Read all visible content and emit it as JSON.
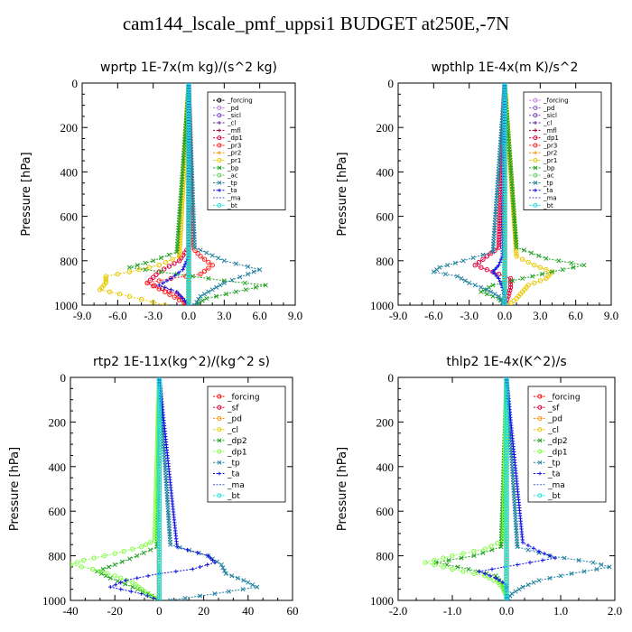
{
  "title": "cam144_lscale_pmf_uppsi1  BUDGET at250E,-7N",
  "chart_data": [
    {
      "type": "line",
      "title": "wprtp   1E-7x(m kg)/(s^2 kg)",
      "ylabel": "Pressure [hPa]",
      "xlim": [
        -9,
        9
      ],
      "ylim": [
        1000,
        0
      ],
      "xticks": [
        "-9.0",
        "-6.0",
        "-3.0",
        "0.0",
        "3.0",
        "6.0",
        "9.0"
      ],
      "yticks": [
        "0",
        "200",
        "400",
        "600",
        "800",
        "1000"
      ],
      "legend_position": "top-right",
      "series": [
        {
          "name": "_forcing",
          "color": "#000000",
          "marker": "o",
          "y": [
            0,
            1000
          ],
          "x": [
            0,
            0
          ]
        },
        {
          "name": "_pd",
          "color": "#c080e0",
          "marker": "o",
          "y": [
            0,
            1000
          ],
          "x": [
            0,
            0
          ]
        },
        {
          "name": "_sicl",
          "color": "#8040c0",
          "marker": "o",
          "y": [
            0,
            1000
          ],
          "x": [
            0,
            0
          ]
        },
        {
          "name": "_cl",
          "color": "#602090",
          "marker": "+",
          "y": [
            0,
            1000
          ],
          "x": [
            0,
            0
          ]
        },
        {
          "name": "_mfl",
          "color": "#a00030",
          "marker": "+",
          "y": [
            0,
            1000
          ],
          "x": [
            0,
            0
          ]
        },
        {
          "name": "_dp1",
          "color": "#e0003c",
          "marker": "o",
          "y": [
            0,
            740,
            800,
            850,
            900,
            950,
            1000
          ],
          "x": [
            0,
            0,
            -0.8,
            -2.5,
            -3.5,
            -1.0,
            0
          ]
        },
        {
          "name": "_pr3",
          "color": "#ff2020",
          "marker": "o",
          "y": [
            0,
            740,
            780,
            820,
            860,
            880,
            900,
            940,
            1000
          ],
          "x": [
            0,
            0.3,
            1.0,
            2.0,
            1.0,
            -1.5,
            -3.5,
            -2.0,
            0
          ]
        },
        {
          "name": "_pr2",
          "color": "#ff9000",
          "marker": "+",
          "y": [
            0,
            1000
          ],
          "x": [
            0,
            0
          ]
        },
        {
          "name": "_pr1",
          "color": "#e8c800",
          "marker": "o",
          "y": [
            0,
            780,
            820,
            850,
            870,
            900,
            930,
            960,
            1000
          ],
          "x": [
            0,
            -0.8,
            -2.5,
            -5.0,
            -7.0,
            -7.0,
            -7.5,
            -5.0,
            -2.0
          ]
        },
        {
          "name": "_bp",
          "color": "#20a020",
          "marker": "x",
          "y": [
            0,
            760,
            800,
            830,
            860,
            890,
            910,
            940,
            970,
            1000
          ],
          "x": [
            0,
            -1.0,
            -3.0,
            -5.0,
            -1.0,
            3.0,
            6.5,
            4.0,
            1.5,
            0.5
          ]
        },
        {
          "name": "_ac",
          "color": "#60d060",
          "marker": "o",
          "y": [
            0,
            1000
          ],
          "x": [
            0,
            0
          ]
        },
        {
          "name": "_tp",
          "color": "#2080a0",
          "marker": "x",
          "y": [
            0,
            740,
            800,
            840,
            860,
            900,
            930,
            960,
            1000
          ],
          "x": [
            0,
            0.5,
            3.0,
            6.0,
            5.0,
            3.0,
            2.0,
            1.0,
            0.5
          ]
        },
        {
          "name": "_ta",
          "color": "#1010e0",
          "marker": "+",
          "y": [
            0,
            780,
            840,
            880,
            910,
            940,
            970,
            1000
          ],
          "x": [
            0,
            0,
            -0.5,
            -1.5,
            -2.5,
            -1.0,
            -0.5,
            0
          ]
        },
        {
          "name": "_ma",
          "color": "#4060c0",
          "marker": "-",
          "y": [
            0,
            1000
          ],
          "x": [
            0,
            0
          ]
        },
        {
          "name": "_bt",
          "color": "#20e0e0",
          "marker": "o",
          "y": [
            0,
            1000
          ],
          "x": [
            0,
            0
          ]
        }
      ]
    },
    {
      "type": "line",
      "title": "wpthlp   1E-4x(m K)/s^2",
      "ylabel": "Pressure [hPa]",
      "xlim": [
        -9,
        9
      ],
      "ylim": [
        1000,
        0
      ],
      "xticks": [
        "-9.0",
        "-6.0",
        "-3.0",
        "0.0",
        "3.0",
        "6.0",
        "9.0"
      ],
      "yticks": [
        "0",
        "200",
        "400",
        "600",
        "800",
        "1000"
      ],
      "legend_position": "top-right",
      "series": [
        {
          "name": "_forcing",
          "color": "#c080e0",
          "marker": "o",
          "y": [
            0,
            1000
          ],
          "x": [
            0,
            0
          ]
        },
        {
          "name": "_pd",
          "color": "#9060d0",
          "marker": "o",
          "y": [
            0,
            1000
          ],
          "x": [
            0,
            0
          ]
        },
        {
          "name": "_sicl",
          "color": "#8040c0",
          "marker": "o",
          "y": [
            0,
            1000
          ],
          "x": [
            0,
            0
          ]
        },
        {
          "name": "_cl",
          "color": "#602090",
          "marker": "+",
          "y": [
            0,
            1000
          ],
          "x": [
            0,
            0
          ]
        },
        {
          "name": "_mfl",
          "color": "#a00030",
          "marker": "+",
          "y": [
            0,
            1000
          ],
          "x": [
            0,
            0
          ]
        },
        {
          "name": "_dp1",
          "color": "#e0003c",
          "marker": "o",
          "y": [
            0,
            740,
            780,
            820,
            850,
            880,
            920,
            960,
            1000
          ],
          "x": [
            0,
            -0.5,
            -1.5,
            -2.5,
            -1.0,
            0.5,
            0.5,
            0.3,
            0
          ]
        },
        {
          "name": "_pr3",
          "color": "#ff2020",
          "marker": "o",
          "y": [
            0,
            1000
          ],
          "x": [
            0,
            0
          ]
        },
        {
          "name": "_pr2",
          "color": "#ff9000",
          "marker": "+",
          "y": [
            0,
            1000
          ],
          "x": [
            0,
            0
          ]
        },
        {
          "name": "_pr1",
          "color": "#e8c800",
          "marker": "o",
          "y": [
            0,
            780,
            820,
            850,
            880,
            910,
            940,
            970,
            1000
          ],
          "x": [
            0,
            1.0,
            2.5,
            4.0,
            3.5,
            2.0,
            1.5,
            1.0,
            0.3
          ]
        },
        {
          "name": "_bp",
          "color": "#20a020",
          "marker": "x",
          "y": [
            0,
            740,
            790,
            820,
            850,
            880,
            910,
            940,
            970,
            1000
          ],
          "x": [
            0,
            1.0,
            3.5,
            6.7,
            4.0,
            1.5,
            -1.0,
            -2.0,
            -0.5,
            0
          ]
        },
        {
          "name": "_ac",
          "color": "#60d060",
          "marker": "o",
          "y": [
            0,
            1000
          ],
          "x": [
            0,
            0
          ]
        },
        {
          "name": "_tp",
          "color": "#2080a0",
          "marker": "x",
          "y": [
            0,
            760,
            800,
            830,
            850,
            870,
            900,
            930,
            960,
            1000
          ],
          "x": [
            0,
            -1.0,
            -3.5,
            -5.5,
            -6.0,
            -4.0,
            -3.0,
            -1.5,
            -0.5,
            0
          ]
        },
        {
          "name": "_ta",
          "color": "#1010e0",
          "marker": "+",
          "y": [
            0,
            780,
            820,
            850,
            880,
            920,
            960,
            1000
          ],
          "x": [
            0,
            -0.2,
            -0.5,
            -1.0,
            -0.5,
            -0.2,
            0,
            0
          ]
        },
        {
          "name": "_ma",
          "color": "#4060c0",
          "marker": "-",
          "y": [
            0,
            1000
          ],
          "x": [
            0,
            0
          ]
        },
        {
          "name": "_bt",
          "color": "#20e0e0",
          "marker": "o",
          "y": [
            0,
            1000
          ],
          "x": [
            0,
            0
          ]
        }
      ]
    },
    {
      "type": "line",
      "title": "rtp2   1E-11x(kg^2)/(kg^2 s)",
      "ylabel": "Pressure [hPa]",
      "xlim": [
        -40,
        60
      ],
      "ylim": [
        1000,
        0
      ],
      "xticks": [
        "-40",
        "-20",
        "0",
        "20",
        "40",
        "60"
      ],
      "yticks": [
        "0",
        "200",
        "400",
        "600",
        "800",
        "1000"
      ],
      "legend_position": "top-right",
      "series": [
        {
          "name": "_forcing",
          "color": "#ff0000",
          "marker": "o",
          "y": [
            0,
            1000
          ],
          "x": [
            0,
            0
          ]
        },
        {
          "name": "_sf",
          "color": "#e0003c",
          "marker": "o",
          "y": [
            0,
            1000
          ],
          "x": [
            0,
            0
          ]
        },
        {
          "name": "_pd",
          "color": "#ff9000",
          "marker": "o",
          "y": [
            0,
            1000
          ],
          "x": [
            0,
            0
          ]
        },
        {
          "name": "_cl",
          "color": "#e8c800",
          "marker": "o",
          "y": [
            0,
            1000
          ],
          "x": [
            0,
            0
          ]
        },
        {
          "name": "_dp2",
          "color": "#20a020",
          "marker": "x",
          "y": [
            0,
            760,
            800,
            840,
            870,
            900,
            940,
            970,
            1000
          ],
          "x": [
            0,
            -1,
            -10,
            -20,
            -28,
            -22,
            -12,
            -5,
            0
          ]
        },
        {
          "name": "_dp1",
          "color": "#80ff40",
          "marker": "o",
          "y": [
            0,
            730,
            760,
            790,
            820,
            840,
            860,
            890,
            920,
            950,
            980,
            1000
          ],
          "x": [
            0,
            -2,
            -8,
            -20,
            -34,
            -40,
            -30,
            -20,
            -12,
            -8,
            -4,
            0
          ]
        },
        {
          "name": "_tp",
          "color": "#2080a0",
          "marker": "x",
          "y": [
            0,
            750,
            800,
            840,
            880,
            910,
            940,
            970,
            1000
          ],
          "x": [
            0,
            5,
            22,
            28,
            30,
            38,
            44,
            25,
            5
          ]
        },
        {
          "name": "_ta",
          "color": "#1010e0",
          "marker": "+",
          "y": [
            0,
            760,
            800,
            830,
            860,
            880,
            910,
            940,
            970,
            1000
          ],
          "x": [
            0,
            8,
            22,
            25,
            15,
            0,
            -15,
            -22,
            -8,
            0
          ]
        },
        {
          "name": "_ma",
          "color": "#4060c0",
          "marker": "-",
          "y": [
            0,
            1000
          ],
          "x": [
            0,
            0
          ]
        },
        {
          "name": "_bt",
          "color": "#20e0e0",
          "marker": "o",
          "y": [
            0,
            1000
          ],
          "x": [
            0,
            0
          ]
        }
      ]
    },
    {
      "type": "line",
      "title": "thlp2   1E-4x(K^2)/s",
      "ylabel": "Pressure [hPa]",
      "xlim": [
        -2,
        2
      ],
      "ylim": [
        1000,
        0
      ],
      "xticks": [
        "-2.0",
        "-1.0",
        "0.0",
        "1.0",
        "2.0"
      ],
      "yticks": [
        "0",
        "200",
        "400",
        "600",
        "800",
        "1000"
      ],
      "legend_position": "top-right",
      "series": [
        {
          "name": "_forcing",
          "color": "#ff0000",
          "marker": "o",
          "y": [
            0,
            1000
          ],
          "x": [
            0,
            0
          ]
        },
        {
          "name": "_sf",
          "color": "#e0003c",
          "marker": "o",
          "y": [
            0,
            1000
          ],
          "x": [
            0,
            0
          ]
        },
        {
          "name": "_pd",
          "color": "#ff9000",
          "marker": "o",
          "y": [
            0,
            1000
          ],
          "x": [
            0,
            0
          ]
        },
        {
          "name": "_cl",
          "color": "#e8c800",
          "marker": "o",
          "y": [
            0,
            1000
          ],
          "x": [
            0,
            0
          ]
        },
        {
          "name": "_dp2",
          "color": "#20a020",
          "marker": "x",
          "y": [
            0,
            760,
            800,
            830,
            860,
            890,
            920,
            950,
            980,
            1000
          ],
          "x": [
            0,
            -0.1,
            -0.6,
            -1.3,
            -0.7,
            -0.2,
            -0.1,
            -0.05,
            0,
            0
          ]
        },
        {
          "name": "_dp1",
          "color": "#80ff40",
          "marker": "o",
          "y": [
            0,
            730,
            770,
            800,
            830,
            860,
            890,
            920,
            950,
            980,
            1000
          ],
          "x": [
            0,
            -0.05,
            -0.4,
            -1.0,
            -1.5,
            -1.0,
            -0.4,
            -0.15,
            -0.05,
            0,
            0
          ]
        },
        {
          "name": "_tp",
          "color": "#2080a0",
          "marker": "x",
          "y": [
            0,
            760,
            800,
            830,
            850,
            880,
            910,
            940,
            970,
            1000
          ],
          "x": [
            0,
            0.2,
            0.8,
            1.6,
            1.9,
            1.2,
            0.6,
            0.3,
            0.1,
            0
          ]
        },
        {
          "name": "_ta",
          "color": "#1010e0",
          "marker": "+",
          "y": [
            0,
            740,
            780,
            810,
            840,
            870,
            900,
            930,
            960,
            1000
          ],
          "x": [
            0,
            0.3,
            0.6,
            0.9,
            0.2,
            -0.5,
            -0.2,
            0,
            0,
            0
          ]
        },
        {
          "name": "_ma",
          "color": "#4060c0",
          "marker": "-",
          "y": [
            0,
            1000
          ],
          "x": [
            0,
            0
          ]
        },
        {
          "name": "_bt",
          "color": "#20e0e0",
          "marker": "o",
          "y": [
            0,
            1000
          ],
          "x": [
            0,
            0
          ]
        }
      ]
    }
  ]
}
